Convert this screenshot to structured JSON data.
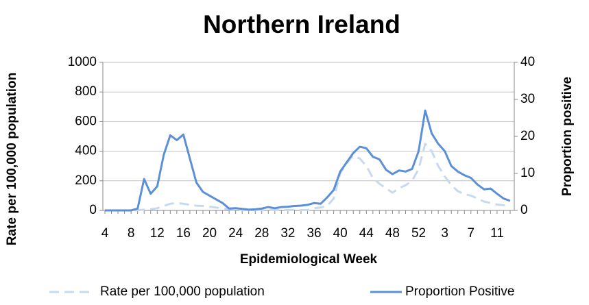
{
  "chart_data": {
    "type": "line",
    "title": "Northern Ireland",
    "x_label": "Epidemiological Week",
    "y_label": "Rate per 100,000 population",
    "y2_label": "Proportion positive",
    "categories": [
      "4",
      null,
      null,
      null,
      "8",
      null,
      null,
      null,
      "12",
      null,
      null,
      null,
      "16",
      null,
      null,
      null,
      "20",
      null,
      null,
      null,
      "24",
      null,
      null,
      null,
      "28",
      null,
      null,
      null,
      "32",
      null,
      null,
      null,
      "36",
      null,
      null,
      null,
      "40",
      null,
      null,
      null,
      "44",
      null,
      null,
      null,
      "48",
      null,
      null,
      null,
      "52",
      null,
      null,
      null,
      "3",
      null,
      null,
      null,
      "7",
      null,
      null,
      null,
      "11",
      null,
      null
    ],
    "ylim": [
      0,
      1000
    ],
    "yticks": [
      0,
      200,
      400,
      600,
      800,
      1000
    ],
    "y2lim": [
      0,
      40
    ],
    "y2ticks": [
      0,
      10,
      20,
      30,
      40
    ],
    "grid": true,
    "series": [
      {
        "name": "Rate per 100,000 population",
        "color": "#c6d9f1",
        "dashed": true,
        "values": [
          0,
          0,
          0,
          0,
          0,
          2,
          5,
          8,
          15,
          30,
          45,
          50,
          45,
          38,
          32,
          30,
          25,
          20,
          12,
          8,
          5,
          3,
          3,
          3,
          3,
          3,
          3,
          3,
          3,
          3,
          3,
          3,
          15,
          20,
          30,
          80,
          250,
          320,
          370,
          350,
          300,
          220,
          180,
          150,
          120,
          150,
          170,
          200,
          280,
          450,
          400,
          300,
          230,
          170,
          130,
          110,
          100,
          80,
          60,
          50,
          40,
          35,
          30
        ]
      },
      {
        "name": "Proportion Positive",
        "color": "#5b8fd6",
        "axis": "y2",
        "values": [
          0,
          0,
          0,
          0,
          0,
          0.5,
          8.5,
          4.5,
          6.5,
          15,
          20.3,
          19,
          20.5,
          14,
          7.5,
          5,
          4,
          3,
          2,
          0.5,
          0.6,
          0.4,
          0.2,
          0.3,
          0.5,
          0.9,
          0.6,
          0.9,
          1,
          1.2,
          1.3,
          1.5,
          2,
          1.8,
          3.5,
          5.5,
          10.5,
          13,
          15.5,
          17.2,
          16.8,
          14.5,
          13.8,
          11,
          9.8,
          10.8,
          10.5,
          11.2,
          16,
          27,
          20.8,
          18,
          16,
          12,
          10.5,
          9.5,
          8.8,
          7,
          5.7,
          5.9,
          4.5,
          3.2,
          2.6
        ]
      }
    ]
  }
}
